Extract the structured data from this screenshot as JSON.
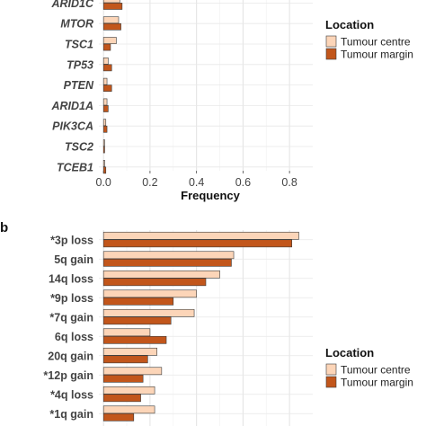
{
  "chart_data": [
    {
      "type": "bar",
      "orientation": "horizontal",
      "panel_label": "",
      "categories": [
        "ARID1C",
        "MTOR",
        "TSC1",
        "TP53",
        "PTEN",
        "ARID1A",
        "PIK3CA",
        "TSC2",
        "TCEB1"
      ],
      "series": [
        {
          "name": "Tumour centre",
          "values": [
            0.07,
            0.065,
            0.055,
            0.02,
            0.015,
            0.015,
            0.01,
            0.005,
            0.005
          ],
          "color": "#fcd5b8"
        },
        {
          "name": "Tumour margin",
          "values": [
            0.08,
            0.075,
            0.03,
            0.035,
            0.035,
            0.02,
            0.015,
            0.005,
            0.01
          ],
          "color": "#c2561b"
        }
      ],
      "xlabel": "Frequency",
      "xlim": [
        -0.02,
        0.9
      ],
      "xticks": [
        "0.0",
        "0.2",
        "0.4",
        "0.6",
        "0.8"
      ],
      "grid": true,
      "legend": {
        "title": "Location",
        "placement": "right"
      }
    },
    {
      "type": "bar",
      "orientation": "horizontal",
      "panel_label": "b",
      "categories": [
        "*3p loss",
        "5q gain",
        "14q loss",
        "*9p loss",
        "*7q gain",
        "6q loss",
        "20q gain",
        "*12p gain",
        "*4q loss",
        "*1q gain"
      ],
      "series": [
        {
          "name": "Tumour centre",
          "values": [
            0.84,
            0.56,
            0.5,
            0.4,
            0.39,
            0.2,
            0.23,
            0.25,
            0.22,
            0.22
          ],
          "color": "#fcd5b8"
        },
        {
          "name": "Tumour margin",
          "values": [
            0.81,
            0.55,
            0.44,
            0.3,
            0.29,
            0.27,
            0.19,
            0.17,
            0.16,
            0.13
          ],
          "color": "#c2561b"
        }
      ],
      "xlim": [
        -0.02,
        0.9
      ],
      "grid": true,
      "legend": {
        "title": "Location",
        "placement": "right"
      }
    }
  ]
}
